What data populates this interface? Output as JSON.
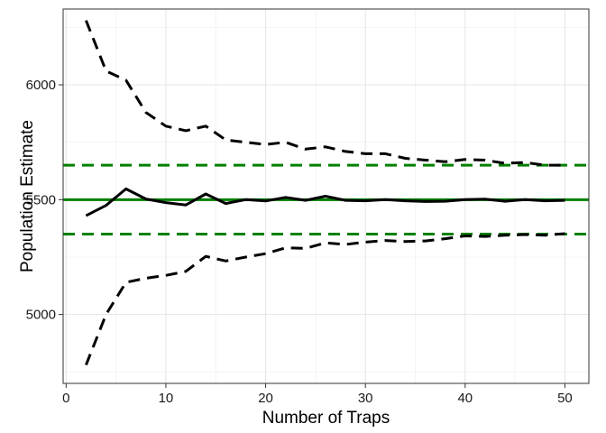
{
  "chart_data": {
    "type": "line",
    "title": "",
    "xlabel": "Number of Traps",
    "ylabel": "Population Estimate",
    "xlim": [
      -0.3,
      52.4
    ],
    "ylim": [
      4700,
      6330
    ],
    "x_ticks": [
      0,
      10,
      20,
      30,
      40,
      50
    ],
    "y_ticks": [
      5000,
      5500,
      6000
    ],
    "grid": true,
    "legend": "none",
    "x": [
      2,
      4,
      6,
      8,
      10,
      12,
      14,
      16,
      18,
      20,
      22,
      24,
      26,
      28,
      30,
      32,
      34,
      36,
      38,
      40,
      42,
      44,
      46,
      48,
      50
    ],
    "series": [
      {
        "role": "estimate",
        "color": "#000000",
        "style": "solid",
        "values": [
          5430,
          5475,
          5547,
          5503,
          5487,
          5477,
          5525,
          5483,
          5500,
          5494,
          5510,
          5497,
          5515,
          5497,
          5495,
          5500,
          5495,
          5492,
          5493,
          5500,
          5502,
          5493,
          5500,
          5495,
          5497
        ]
      },
      {
        "role": "upper-bound",
        "color": "#000000",
        "style": "dashed",
        "values": [
          6280,
          6060,
          6020,
          5880,
          5820,
          5800,
          5820,
          5760,
          5750,
          5740,
          5750,
          5720,
          5730,
          5710,
          5700,
          5700,
          5680,
          5672,
          5665,
          5675,
          5672,
          5658,
          5662,
          5650,
          5650
        ]
      },
      {
        "role": "lower-bound",
        "color": "#000000",
        "style": "dashed",
        "values": [
          4780,
          5000,
          5140,
          5158,
          5170,
          5188,
          5253,
          5233,
          5250,
          5265,
          5290,
          5288,
          5312,
          5305,
          5315,
          5322,
          5318,
          5320,
          5330,
          5342,
          5340,
          5345,
          5348,
          5345,
          5352
        ]
      }
    ],
    "reference_lines": [
      {
        "role": "true-value",
        "y": 5500,
        "color": "#008000",
        "style": "solid"
      },
      {
        "role": "upper-reference",
        "y": 5650,
        "color": "#008000",
        "style": "dashed"
      },
      {
        "role": "lower-reference",
        "y": 5350,
        "color": "#008000",
        "style": "dashed"
      }
    ],
    "colors": {
      "panel_border": "#333333",
      "grid_major": "#e5e5e5",
      "grid_minor": "#f4f4f4"
    }
  }
}
